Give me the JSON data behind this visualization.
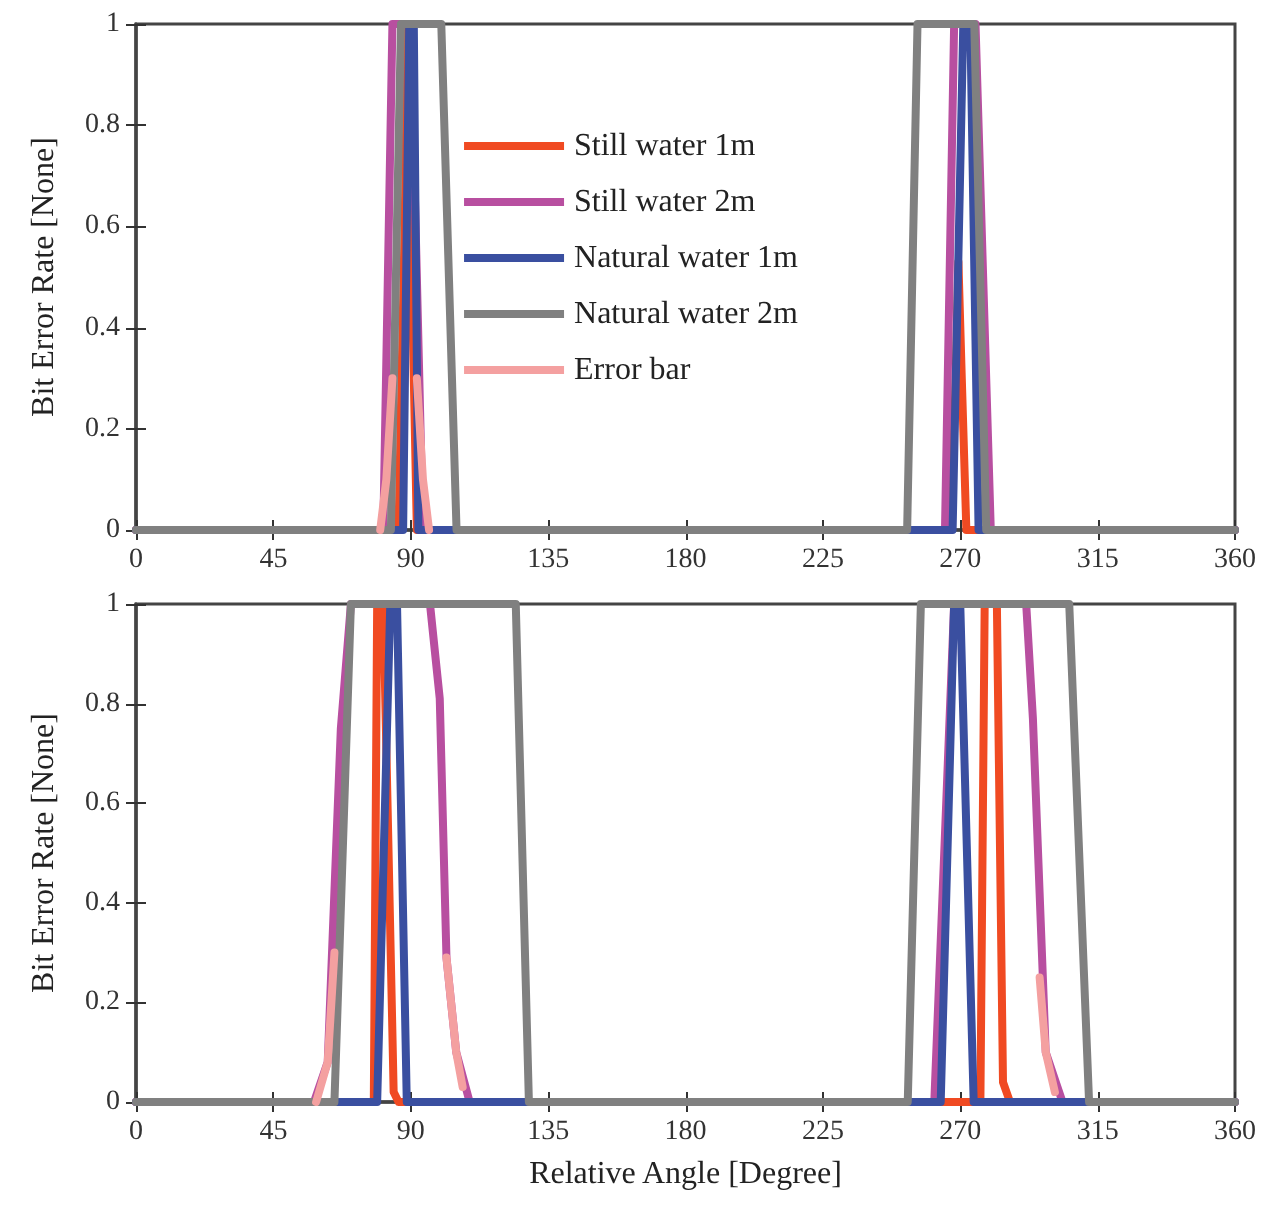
{
  "chart_data": [
    {
      "type": "line",
      "ylabel": "Bit Error Rate [None]",
      "xlim": [
        0,
        360
      ],
      "xticks": [
        0,
        45,
        90,
        135,
        180,
        225,
        270,
        315,
        360
      ],
      "ylim": [
        0,
        1
      ],
      "yticks": [
        0,
        0.2,
        0.4,
        0.6,
        0.8,
        1
      ],
      "grid": false,
      "legend": "top",
      "marker": "none",
      "line_style": "solid",
      "series": [
        {
          "name": "Still water 1m",
          "color": "#f04a22",
          "x": [
            0,
            86,
            88,
            89,
            90,
            92,
            267,
            268.5,
            269.4,
            270.5,
            272,
            360
          ],
          "values": [
            0,
            0,
            0.6,
            1,
            0.6,
            0,
            0,
            0.3,
            0.53,
            0.3,
            0,
            0
          ]
        },
        {
          "name": "Still water 2m",
          "color": "#b84fa0",
          "x": [
            0,
            81,
            84,
            90,
            94,
            265,
            268,
            275,
            280,
            360
          ],
          "values": [
            0,
            0,
            1,
            1,
            0,
            0,
            1,
            1,
            0,
            0
          ]
        },
        {
          "name": "Natural water 1m",
          "color": "#3a4fa0",
          "x": [
            0,
            87.5,
            89.5,
            91,
            92.5,
            267.5,
            271,
            273.3,
            276,
            360
          ],
          "values": [
            0,
            0,
            1,
            1,
            0,
            0,
            1,
            1,
            0,
            0
          ]
        },
        {
          "name": "Natural water 2m",
          "color": "#808080",
          "x": [
            0,
            83.5,
            86.8,
            100,
            105,
            252.6,
            256,
            274.6,
            278.5,
            360
          ],
          "values": [
            0,
            0,
            1,
            1,
            0,
            0,
            1,
            1,
            0,
            0
          ]
        },
        {
          "name": "Error bar",
          "color": "#f4a0a0",
          "x": [
            80,
            82,
            84,
            null,
            92,
            94,
            96
          ],
          "values": [
            0,
            0.1,
            0.3,
            null,
            0.3,
            0.1,
            0
          ]
        }
      ]
    },
    {
      "type": "line",
      "xlabel": "Relative Angle [Degree]",
      "ylabel": "Bit Error Rate [None]",
      "xlim": [
        0,
        360
      ],
      "xticks": [
        0,
        45,
        90,
        135,
        180,
        225,
        270,
        315,
        360
      ],
      "ylim": [
        0,
        1
      ],
      "yticks": [
        0,
        0.2,
        0.4,
        0.6,
        0.8,
        1
      ],
      "grid": false,
      "legend": false,
      "marker": "none",
      "line_style": "solid",
      "series": [
        {
          "color": "#f04a22",
          "x": [
            0,
            77.9,
            79,
            81,
            84.4,
            86,
            276.6,
            278,
            282,
            284,
            286.3,
            360
          ],
          "values": [
            0,
            0,
            1,
            1,
            0.02,
            0,
            0,
            1,
            1,
            0.04,
            0,
            0
          ]
        },
        {
          "color": "#b84fa0",
          "x": [
            0,
            58.3,
            62.8,
            67.1,
            70.4,
            96.3,
            99.5,
            101.7,
            104.9,
            109.3,
            261.5,
            268,
            291.6,
            293.8,
            298,
            303.5,
            360
          ],
          "values": [
            0,
            0,
            0.08,
            0.75,
            1,
            1,
            0.81,
            0.29,
            0.1,
            0,
            0,
            1,
            1,
            0.77,
            0.1,
            0,
            0
          ]
        },
        {
          "color": "#3a4fa0",
          "x": [
            0,
            79,
            83.3,
            85.5,
            88.7,
            263.6,
            268,
            270,
            274.4,
            360
          ],
          "values": [
            0,
            0,
            1,
            1,
            0,
            0,
            1,
            1,
            0,
            0
          ]
        },
        {
          "color": "#808080",
          "x": [
            0,
            65,
            70.4,
            124.4,
            128.7,
            252.8,
            257.1,
            305.7,
            312.2,
            360
          ],
          "values": [
            0,
            0,
            1,
            1,
            0,
            0,
            1,
            1,
            0,
            0
          ]
        },
        {
          "color": "#f4a0a0",
          "x": [
            59,
            62.8,
            65,
            null,
            101.7,
            104.9,
            107,
            null,
            296,
            298,
            301
          ],
          "values": [
            0,
            0.08,
            0.3,
            null,
            0.29,
            0.1,
            0.03,
            null,
            0.25,
            0.1,
            0.02
          ]
        }
      ]
    }
  ]
}
